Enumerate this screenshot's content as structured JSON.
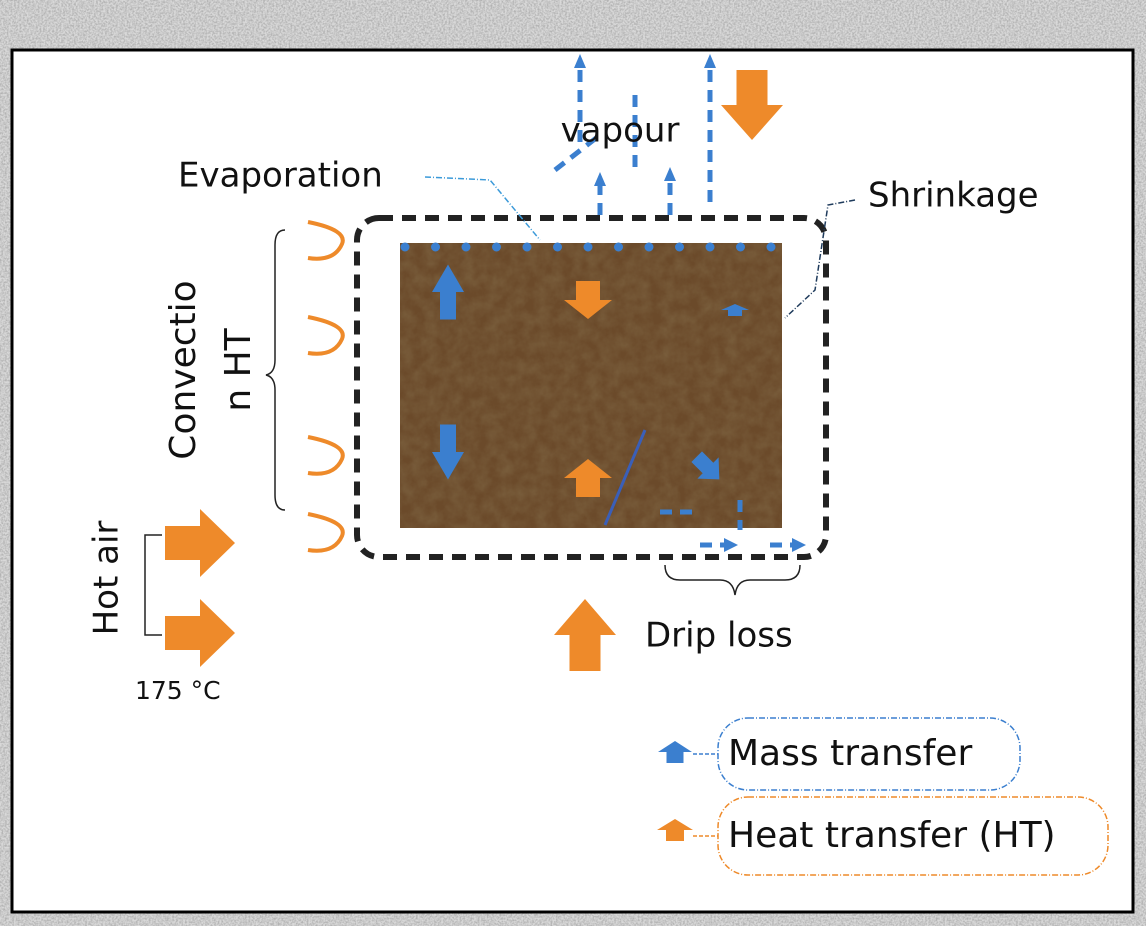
{
  "labels": {
    "vapour": "vapour",
    "evaporation": "Evaporation",
    "shrinkage": "Shrinkage",
    "convection": [
      "Convectio",
      "n HT"
    ],
    "hot_air": "Hot air",
    "temperature": "175 °C",
    "drip_loss": "Drip loss"
  },
  "legend": [
    {
      "label": "Mass transfer"
    },
    {
      "label": "Heat transfer (HT)"
    }
  ]
}
